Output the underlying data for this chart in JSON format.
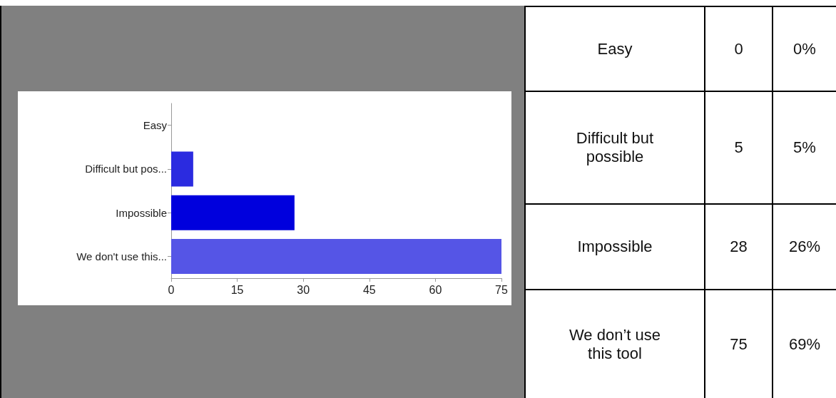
{
  "chart_data": [
    {
      "type": "bar",
      "orientation": "horizontal",
      "categories": [
        "Easy",
        "Difficult but pos...",
        "Impossible",
        "We don't use this..."
      ],
      "values": [
        0,
        5,
        28,
        75
      ],
      "colors": [
        "#2b2be0",
        "#2b2be0",
        "#0000dd",
        "#5555e6"
      ],
      "xlim": [
        0,
        75
      ],
      "xticks": [
        0,
        15,
        30,
        45,
        60,
        75
      ],
      "grid": false
    },
    {
      "type": "other",
      "categories": [
        "Easy",
        "Difficult but possible",
        "Impossible",
        "We don’t use this tool"
      ],
      "data_labels": true,
      "series": [
        {
          "values": [
            0,
            5,
            28,
            75
          ]
        },
        {
          "values": [
            0,
            5,
            26,
            69
          ],
          "value_labels": [
            "0%",
            "5%",
            "26%",
            "69%"
          ]
        }
      ]
    }
  ]
}
